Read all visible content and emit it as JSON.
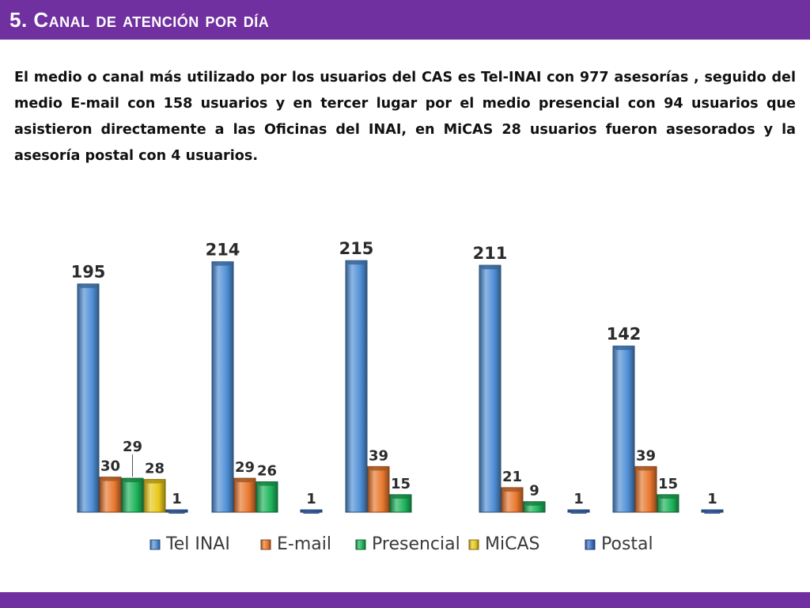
{
  "slide": {
    "title": "5. Canal de atención por día",
    "body": "El medio o canal más utilizado por los usuarios del CAS es Tel-INAI con 977 asesorías , seguido del medio E-mail con 158 usuarios y en tercer lugar por el medio presencial con 94 usuarios que  asistieron directamente a las Oficinas del INAI, en MiCAS 28 usuarios fueron asesorados y la asesoría postal con 4 usuarios.",
    "accent_color": "#7030a0"
  },
  "chart_data": {
    "type": "bar",
    "title": "",
    "xlabel": "",
    "ylabel": "",
    "categories": [
      "",
      "",
      "",
      "",
      ""
    ],
    "ylim": [
      0,
      230
    ],
    "grid": false,
    "legend_position": "bottom",
    "series": [
      {
        "name": "Tel INAI",
        "color": "#4f8fd6",
        "values": [
          195,
          214,
          215,
          211,
          142
        ]
      },
      {
        "name": "E-mail",
        "color": "#e8782e",
        "values": [
          30,
          29,
          39,
          21,
          39
        ]
      },
      {
        "name": "Presencial",
        "color": "#1db35a",
        "values": [
          29,
          26,
          15,
          9,
          15
        ]
      },
      {
        "name": "MiCAS",
        "color": "#e8c81a",
        "values": [
          28,
          null,
          null,
          null,
          null
        ]
      },
      {
        "name": "Postal",
        "color": "#3a6fc4",
        "values": [
          1,
          1,
          null,
          1,
          1
        ]
      }
    ]
  }
}
